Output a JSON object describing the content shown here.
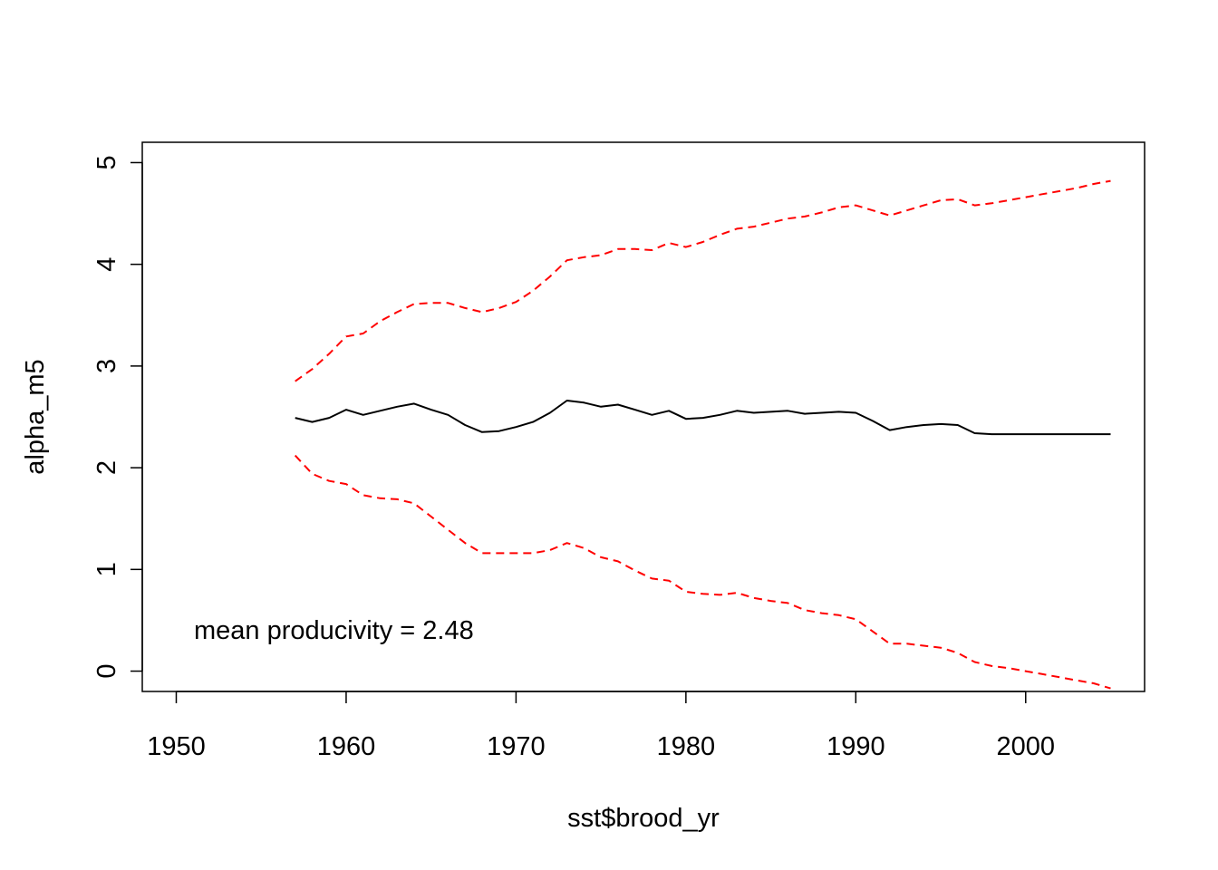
{
  "chart_data": {
    "type": "line",
    "title": "",
    "xlabel": "sst$brood_yr",
    "ylabel": "alpha_m5",
    "xlim": [
      1948,
      2007
    ],
    "ylim": [
      -0.2,
      5.2
    ],
    "xticks": [
      1950,
      1960,
      1970,
      1980,
      1990,
      2000
    ],
    "yticks": [
      0,
      1,
      2,
      3,
      4,
      5
    ],
    "annotation": "mean producivity = 2.48",
    "x": [
      1957,
      1958,
      1959,
      1960,
      1961,
      1962,
      1963,
      1964,
      1965,
      1966,
      1967,
      1968,
      1969,
      1970,
      1971,
      1972,
      1973,
      1974,
      1975,
      1976,
      1977,
      1978,
      1979,
      1980,
      1981,
      1982,
      1983,
      1984,
      1985,
      1986,
      1987,
      1988,
      1989,
      1990,
      1991,
      1992,
      1993,
      1994,
      1995,
      1996,
      1997,
      1998,
      1999,
      2000,
      2001,
      2002,
      2003,
      2004,
      2005
    ],
    "series": [
      {
        "color": "#000000",
        "dash": "solid",
        "values": [
          2.49,
          2.45,
          2.49,
          2.57,
          2.52,
          2.56,
          2.6,
          2.63,
          2.57,
          2.52,
          2.42,
          2.35,
          2.36,
          2.4,
          2.45,
          2.54,
          2.66,
          2.64,
          2.6,
          2.62,
          2.57,
          2.52,
          2.56,
          2.48,
          2.49,
          2.52,
          2.56,
          2.54,
          2.55,
          2.56,
          2.53,
          2.54,
          2.55,
          2.54,
          2.46,
          2.37,
          2.4,
          2.42,
          2.43,
          2.42,
          2.34,
          2.33,
          2.33,
          2.33,
          2.33,
          2.33,
          2.33,
          2.33,
          2.33
        ]
      },
      {
        "color": "#ff0000",
        "dash": "dashed",
        "values": [
          2.85,
          2.97,
          3.12,
          3.29,
          3.32,
          3.44,
          3.53,
          3.61,
          3.62,
          3.62,
          3.57,
          3.53,
          3.57,
          3.63,
          3.74,
          3.88,
          4.04,
          4.07,
          4.09,
          4.15,
          4.15,
          4.14,
          4.21,
          4.17,
          4.22,
          4.29,
          4.35,
          4.37,
          4.41,
          4.45,
          4.47,
          4.51,
          4.56,
          4.58,
          4.53,
          4.48,
          4.53,
          4.58,
          4.63,
          4.64,
          4.58,
          4.6,
          4.63,
          4.66,
          4.69,
          4.72,
          4.75,
          4.79,
          4.82
        ]
      },
      {
        "color": "#ff0000",
        "dash": "dashed",
        "values": [
          2.12,
          1.94,
          1.87,
          1.84,
          1.73,
          1.7,
          1.69,
          1.65,
          1.52,
          1.39,
          1.26,
          1.16,
          1.16,
          1.16,
          1.16,
          1.19,
          1.26,
          1.21,
          1.12,
          1.08,
          0.99,
          0.91,
          0.89,
          0.78,
          0.76,
          0.75,
          0.77,
          0.72,
          0.69,
          0.67,
          0.6,
          0.57,
          0.55,
          0.51,
          0.39,
          0.27,
          0.27,
          0.25,
          0.23,
          0.18,
          0.09,
          0.05,
          0.03,
          0.0,
          -0.03,
          -0.06,
          -0.09,
          -0.12,
          -0.17
        ]
      }
    ]
  }
}
